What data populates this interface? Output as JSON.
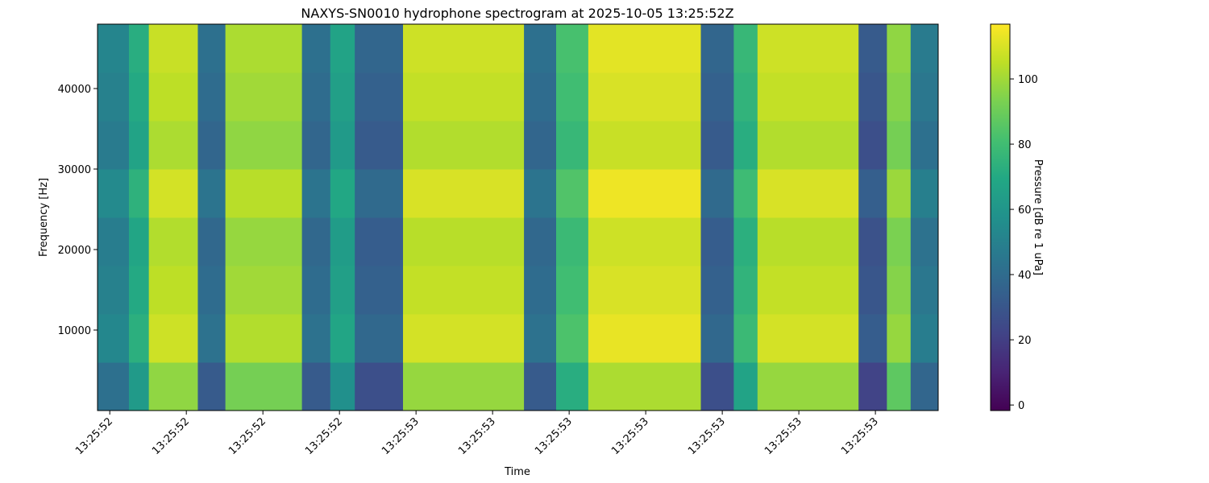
{
  "chart_data": {
    "type": "heatmap",
    "title": "NAXYS-SN0010 hydrophone spectrogram at 2025-10-05 13:25:52Z",
    "xlabel": "Time",
    "ylabel": "Frequency [Hz]",
    "colorbar_label": "Pressure [dB re 1 uPa]",
    "colormap": "viridis",
    "x_edges": [
      52.584,
      52.625,
      52.651,
      52.715,
      52.751,
      52.851,
      52.888,
      52.92,
      52.983,
      53.141,
      53.183,
      53.225,
      53.372,
      53.415,
      53.446,
      53.578,
      53.615,
      53.646,
      53.682
    ],
    "y_edges": [
      0,
      6000,
      12000,
      18000,
      24000,
      30000,
      36000,
      42000,
      48000
    ],
    "values": [
      [
        42,
        62,
        97,
        32,
        92,
        32,
        57,
        27,
        98,
        32,
        72,
        102,
        27,
        67,
        98,
        22,
        87,
        37
      ],
      [
        53,
        73,
        108,
        43,
        103,
        43,
        68,
        38,
        109,
        43,
        83,
        113,
        38,
        78,
        109,
        33,
        98,
        48
      ],
      [
        50,
        70,
        105,
        40,
        100,
        40,
        65,
        35,
        106,
        40,
        80,
        110,
        35,
        75,
        106,
        30,
        95,
        45
      ],
      [
        48,
        68,
        103,
        38,
        98,
        38,
        63,
        33,
        104,
        38,
        78,
        108,
        33,
        73,
        104,
        28,
        93,
        43
      ],
      [
        54,
        74,
        109,
        44,
        104,
        44,
        69,
        39,
        110,
        44,
        84,
        114,
        39,
        79,
        110,
        34,
        99,
        49
      ],
      [
        47,
        67,
        102,
        37,
        97,
        37,
        62,
        32,
        103,
        37,
        77,
        107,
        32,
        72,
        103,
        27,
        92,
        42
      ],
      [
        50,
        70,
        105,
        40,
        100,
        40,
        65,
        35,
        106,
        40,
        80,
        110,
        35,
        75,
        106,
        30,
        95,
        45
      ],
      [
        52,
        72,
        107,
        42,
        102,
        42,
        67,
        37,
        108,
        42,
        82,
        112,
        37,
        77,
        108,
        32,
        97,
        47
      ]
    ],
    "xlim": [
      52.584,
      53.682
    ],
    "xticks": [
      {
        "value": 52.6,
        "label": "13:25:52"
      },
      {
        "value": 52.7,
        "label": "13:25:52"
      },
      {
        "value": 52.8,
        "label": "13:25:52"
      },
      {
        "value": 52.9,
        "label": "13:25:52"
      },
      {
        "value": 53.0,
        "label": "13:25:53"
      },
      {
        "value": 53.1,
        "label": "13:25:53"
      },
      {
        "value": 53.2,
        "label": "13:25:53"
      },
      {
        "value": 53.3,
        "label": "13:25:53"
      },
      {
        "value": 53.4,
        "label": "13:25:53"
      },
      {
        "value": 53.5,
        "label": "13:25:53"
      },
      {
        "value": 53.6,
        "label": "13:25:53"
      }
    ],
    "ylim": [
      0,
      48000
    ],
    "yticks": [
      10000,
      20000,
      30000,
      40000
    ],
    "zlim": [
      -1.7,
      116.8
    ],
    "zticks": [
      0,
      20,
      40,
      60,
      80,
      100
    ]
  }
}
